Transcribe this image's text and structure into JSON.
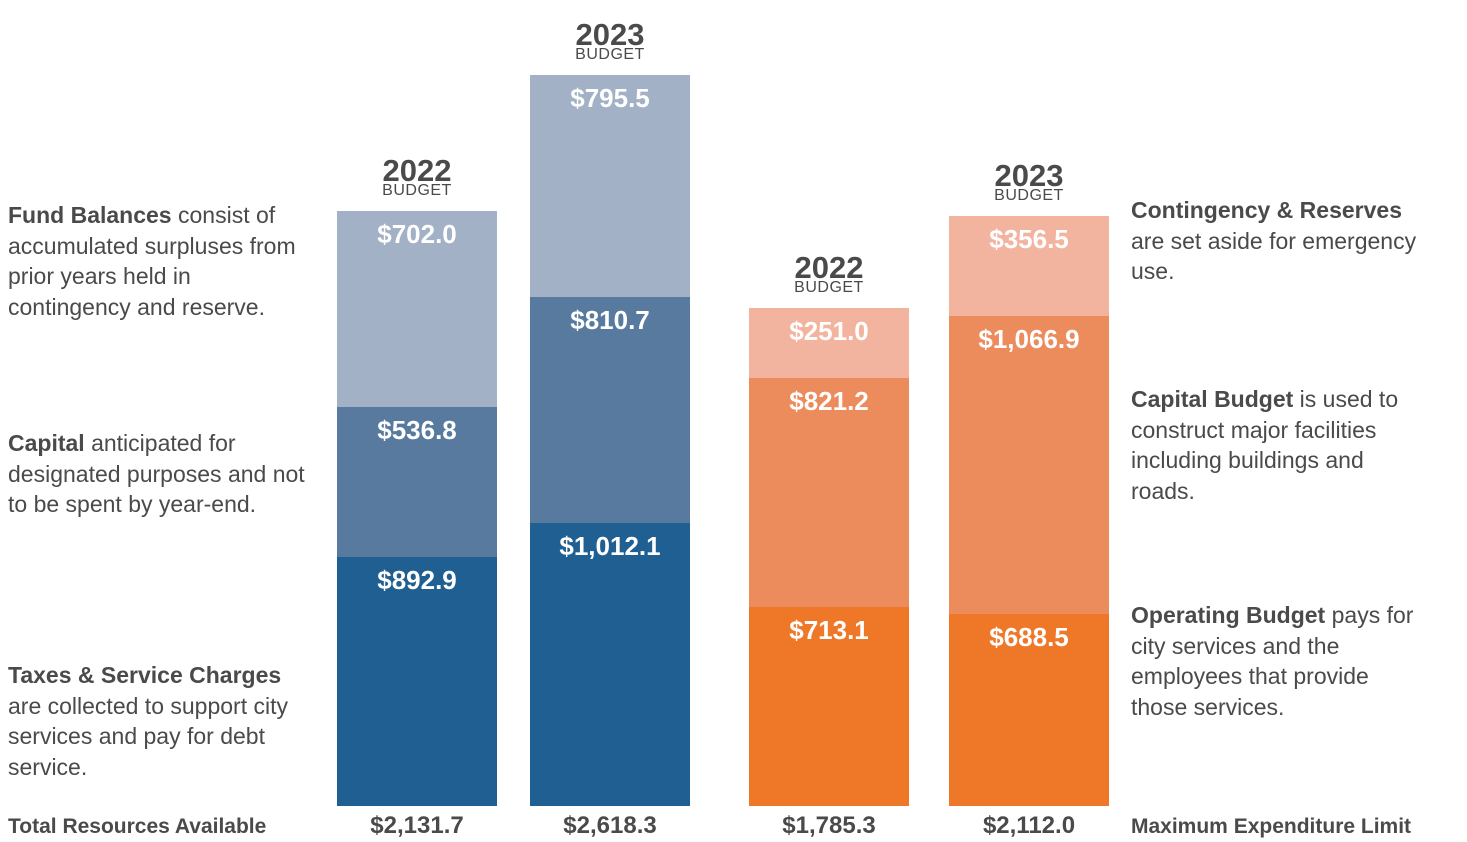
{
  "chart_data": [
    {
      "type": "stacked_bar",
      "legend_side": "left",
      "categories": [
        "2022",
        "2023"
      ],
      "category_sublabel": "BUDGET",
      "series": [
        {
          "name": "Taxes & Service Charges",
          "description": "are collected to support city services and pay for debt service.",
          "color": "#1f5f91",
          "values": [
            892.9,
            1012.1
          ],
          "value_labels": [
            "$892.9",
            "$1,012.1"
          ]
        },
        {
          "name": "Capital",
          "description": "anticipated for designated purposes and not to be spent by year-end.",
          "color": "#587a9f",
          "values": [
            536.8,
            810.7
          ],
          "value_labels": [
            "$536.8",
            "$810.7"
          ]
        },
        {
          "name": "Fund Balances",
          "description": "consist of accumulated surpluses from prior years held in contingency and reserve.",
          "color": "#a2b1c5",
          "values": [
            702.0,
            795.5
          ],
          "value_labels": [
            "$702.0",
            "$795.5"
          ]
        }
      ],
      "total_name": "Total Resources Available",
      "totals": [
        2131.7,
        2618.3
      ],
      "total_labels": [
        "$2,131.7",
        "$2,618.3"
      ]
    },
    {
      "type": "stacked_bar",
      "legend_side": "right",
      "categories": [
        "2022",
        "2023"
      ],
      "category_sublabel": "BUDGET",
      "series": [
        {
          "name": "Operating Budget",
          "description": "pays for city services and the employees that provide those services.",
          "color": "#ee7828",
          "values": [
            713.1,
            688.5
          ],
          "value_labels": [
            "$713.1",
            "$688.5"
          ]
        },
        {
          "name": "Capital Budget",
          "description": "is used to construct major facilities including buildings and roads.",
          "color": "#ec8b5c",
          "values": [
            821.2,
            1066.9
          ],
          "value_labels": [
            "$821.2",
            "$1,066.9"
          ]
        },
        {
          "name": "Contingency & Reserves",
          "description": "are set aside for emergency use.",
          "color": "#f3b49f",
          "values": [
            251.0,
            356.5
          ],
          "value_labels": [
            "$251.0",
            "$356.5"
          ]
        }
      ],
      "total_name": "Maximum Expenditure Limit",
      "totals": [
        1785.3,
        2112.0
      ],
      "total_labels": [
        "$1,785.3",
        "$2,112.0"
      ]
    }
  ]
}
